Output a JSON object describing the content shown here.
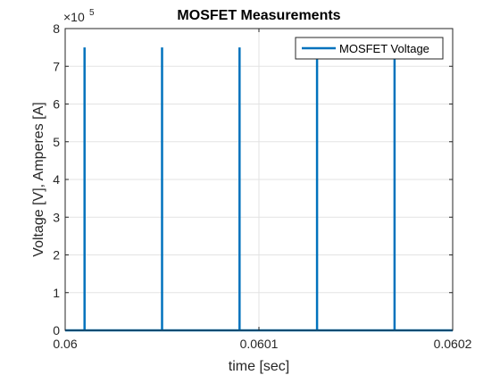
{
  "chart_data": {
    "type": "line",
    "title": "MOSFET Measurements",
    "xlabel": "time [sec]",
    "ylabel": "Voltage [V], Amperes [A]",
    "xlim": [
      0.06,
      0.0602
    ],
    "ylim": [
      0,
      800000
    ],
    "x_ticks": [
      0.06,
      0.0601,
      0.0602
    ],
    "x_tick_labels": [
      "0.06",
      "0.0601",
      "0.0602"
    ],
    "y_ticks": [
      0,
      1,
      2,
      3,
      4,
      5,
      6,
      7,
      8
    ],
    "y_tick_labels": [
      "0",
      "1",
      "2",
      "3",
      "4",
      "5",
      "6",
      "7",
      "8"
    ],
    "y_exponent_base": "×10",
    "y_exponent": "5",
    "grid": true,
    "legend_placement": "top-right",
    "series": [
      {
        "name": "MOSFET Voltage",
        "color": "#0072BD",
        "spike_x": [
          0.06001,
          0.06005,
          0.06009,
          0.06013,
          0.06017
        ],
        "spike_peak": 750000,
        "baseline": 0
      }
    ]
  }
}
